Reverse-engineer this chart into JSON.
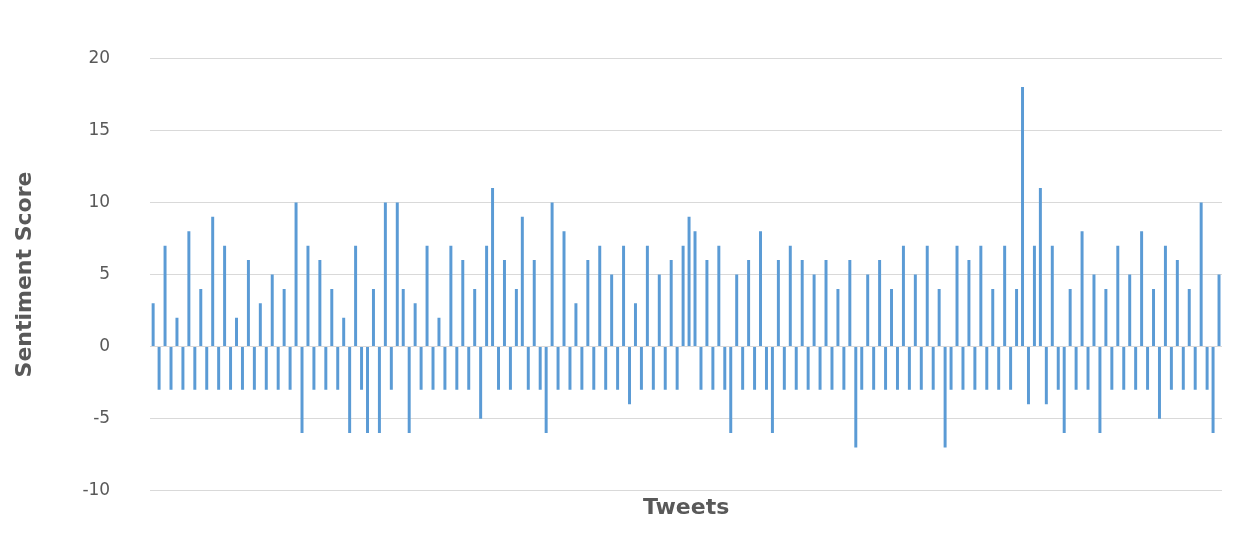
{
  "chart_data": {
    "type": "bar",
    "ylabel": "Sentiment Score",
    "xlabel": "Tweets",
    "categories": [
      null,
      null,
      null,
      null,
      null,
      null,
      null,
      null,
      null,
      null,
      null,
      null,
      null,
      null,
      null,
      null,
      null,
      null,
      null,
      null,
      null,
      null,
      null,
      null,
      null,
      null,
      null,
      null,
      null,
      null,
      null,
      null,
      null,
      null,
      null,
      null,
      null,
      null,
      null,
      null,
      null,
      null,
      null,
      null,
      null,
      null,
      null,
      null,
      null,
      null,
      null,
      null,
      null,
      null,
      null,
      null,
      null,
      null,
      null,
      null,
      null,
      null,
      null,
      null,
      null,
      null,
      null,
      null,
      null,
      null,
      null,
      null,
      null,
      null,
      null,
      null,
      null,
      null,
      null,
      null,
      null,
      null,
      null,
      null,
      null,
      null,
      null,
      null,
      null,
      null,
      null,
      null,
      null,
      null,
      null,
      null,
      null,
      null,
      null,
      null,
      null,
      null,
      null,
      null,
      null,
      null,
      null,
      null,
      null,
      null,
      null,
      null,
      null,
      null,
      null,
      null,
      null,
      null,
      null,
      null,
      null,
      null,
      null,
      null,
      null,
      null,
      null,
      null,
      null,
      null,
      null,
      null,
      null,
      null,
      null,
      null,
      null,
      null,
      null,
      null,
      null,
      null,
      null,
      null,
      null,
      null,
      null,
      null,
      null,
      null,
      null,
      null,
      null,
      null,
      null,
      null,
      null,
      null,
      null,
      null,
      null,
      null,
      null,
      null,
      null,
      null,
      null,
      null,
      null,
      null,
      null,
      null,
      null,
      null,
      null,
      null,
      null,
      null,
      null,
      null
    ],
    "values": [
      3,
      -3,
      7,
      -3,
      2,
      -3,
      8,
      -3,
      4,
      -3,
      9,
      -3,
      7,
      -3,
      2,
      -3,
      6,
      -3,
      3,
      -3,
      5,
      -3,
      4,
      -3,
      10,
      -6,
      7,
      -3,
      6,
      -3,
      4,
      -3,
      2,
      -6,
      7,
      -3,
      -6,
      4,
      -6,
      10,
      -3,
      10,
      4,
      -6,
      3,
      -3,
      7,
      -3,
      2,
      -3,
      7,
      -3,
      6,
      -3,
      4,
      -5,
      7,
      11,
      -3,
      6,
      -3,
      4,
      9,
      -3,
      6,
      -3,
      -6,
      10,
      -3,
      8,
      -3,
      3,
      -3,
      6,
      -3,
      7,
      -3,
      5,
      -3,
      7,
      -4,
      3,
      -3,
      7,
      -3,
      5,
      -3,
      6,
      -3,
      7,
      9,
      8,
      -3,
      6,
      -3,
      7,
      -3,
      -6,
      5,
      -3,
      6,
      -3,
      8,
      -3,
      -6,
      6,
      -3,
      7,
      -3,
      6,
      -3,
      5,
      -3,
      6,
      -3,
      4,
      -3,
      6,
      -7,
      -3,
      5,
      -3,
      6,
      -3,
      4,
      -3,
      7,
      -3,
      5,
      -3,
      7,
      -3,
      4,
      -7,
      -3,
      7,
      -3,
      6,
      -3,
      7,
      -3,
      4,
      -3,
      7,
      -3,
      4,
      18,
      -4,
      7,
      11,
      -4,
      7,
      -3,
      -6,
      4,
      -3,
      8,
      -3,
      5,
      -6,
      4,
      -3,
      7,
      -3,
      5,
      -3,
      8,
      -3,
      4,
      -5,
      7,
      -3,
      6,
      -3,
      4,
      -3,
      10,
      -3,
      -6,
      5
    ],
    "color": "#5b9bd5",
    "ylim": [
      -10,
      20
    ],
    "yticks": [
      -10,
      -5,
      0,
      5,
      10,
      15,
      20
    ],
    "grid": "y",
    "tick_labels": "y",
    "legend": false
  }
}
